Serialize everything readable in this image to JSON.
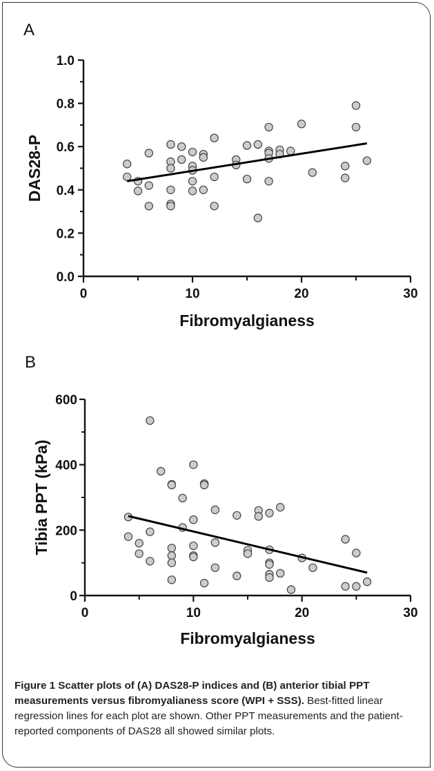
{
  "chart_data": [
    {
      "type": "scatter",
      "panel_label": "A",
      "xlabel": "Fibromyalgianess",
      "ylabel": "DAS28-P",
      "xlim": [
        0,
        30
      ],
      "ylim": [
        0.0,
        1.0
      ],
      "x_ticks": [
        "0",
        "10",
        "20",
        "30"
      ],
      "y_ticks": [
        "0.0",
        "0.2",
        "0.4",
        "0.6",
        "0.8",
        "1.0"
      ],
      "grid": false,
      "marker_color": "#cccccc",
      "marker_edge": "#444444",
      "line_color": "#000000",
      "points": [
        [
          4,
          0.52
        ],
        [
          4,
          0.46
        ],
        [
          5,
          0.44
        ],
        [
          5,
          0.395
        ],
        [
          6,
          0.57
        ],
        [
          6,
          0.42
        ],
        [
          6,
          0.325
        ],
        [
          8,
          0.61
        ],
        [
          8,
          0.53
        ],
        [
          8,
          0.5
        ],
        [
          8,
          0.4
        ],
        [
          8,
          0.335
        ],
        [
          8,
          0.325
        ],
        [
          9,
          0.6
        ],
        [
          9,
          0.54
        ],
        [
          10,
          0.575
        ],
        [
          10,
          0.51
        ],
        [
          10,
          0.49
        ],
        [
          10,
          0.44
        ],
        [
          10,
          0.395
        ],
        [
          11,
          0.565
        ],
        [
          11,
          0.55
        ],
        [
          11,
          0.4
        ],
        [
          12,
          0.64
        ],
        [
          12,
          0.46
        ],
        [
          12,
          0.325
        ],
        [
          14,
          0.54
        ],
        [
          14,
          0.515
        ],
        [
          15,
          0.605
        ],
        [
          15,
          0.45
        ],
        [
          16,
          0.61
        ],
        [
          16,
          0.27
        ],
        [
          17,
          0.69
        ],
        [
          17,
          0.58
        ],
        [
          17,
          0.57
        ],
        [
          17,
          0.545
        ],
        [
          17,
          0.44
        ],
        [
          18,
          0.585
        ],
        [
          18,
          0.565
        ],
        [
          19,
          0.58
        ],
        [
          20,
          0.705
        ],
        [
          21,
          0.48
        ],
        [
          24,
          0.51
        ],
        [
          24,
          0.455
        ],
        [
          25,
          0.79
        ],
        [
          25,
          0.69
        ],
        [
          26,
          0.535
        ]
      ],
      "regression": {
        "x": [
          4,
          26
        ],
        "y": [
          0.44,
          0.615
        ]
      }
    },
    {
      "type": "scatter",
      "panel_label": "B",
      "xlabel": "Fibromyalgianess",
      "ylabel": "Tibia PPT (kPa)",
      "xlim": [
        0,
        30
      ],
      "ylim": [
        0,
        600
      ],
      "x_ticks": [
        "0",
        "10",
        "20",
        "30"
      ],
      "y_ticks": [
        "0",
        "200",
        "400",
        "600"
      ],
      "grid": false,
      "marker_color": "#cccccc",
      "marker_edge": "#444444",
      "line_color": "#000000",
      "points": [
        [
          4,
          240
        ],
        [
          4,
          180
        ],
        [
          5,
          160
        ],
        [
          5,
          128
        ],
        [
          6,
          535
        ],
        [
          6,
          195
        ],
        [
          6,
          105
        ],
        [
          7,
          380
        ],
        [
          8,
          340
        ],
        [
          8,
          338
        ],
        [
          8,
          145
        ],
        [
          8,
          122
        ],
        [
          8,
          100
        ],
        [
          8,
          48
        ],
        [
          9,
          298
        ],
        [
          9,
          208
        ],
        [
          10,
          400
        ],
        [
          10,
          232
        ],
        [
          10,
          152
        ],
        [
          10,
          122
        ],
        [
          10,
          118
        ],
        [
          11,
          342
        ],
        [
          11,
          338
        ],
        [
          11,
          38
        ],
        [
          12,
          262
        ],
        [
          12,
          162
        ],
        [
          12,
          85
        ],
        [
          14,
          245
        ],
        [
          14,
          60
        ],
        [
          15,
          138
        ],
        [
          15,
          128
        ],
        [
          16,
          260
        ],
        [
          16,
          242
        ],
        [
          17,
          252
        ],
        [
          17,
          140
        ],
        [
          17,
          100
        ],
        [
          17,
          95
        ],
        [
          17,
          65
        ],
        [
          17,
          55
        ],
        [
          18,
          270
        ],
        [
          18,
          68
        ],
        [
          19,
          18
        ],
        [
          20,
          115
        ],
        [
          21,
          85
        ],
        [
          24,
          172
        ],
        [
          24,
          28
        ],
        [
          25,
          130
        ],
        [
          25,
          28
        ],
        [
          26,
          42
        ]
      ],
      "regression": {
        "x": [
          4,
          26
        ],
        "y": [
          243,
          70
        ]
      }
    }
  ],
  "caption": {
    "bold": "Figure 1 Scatter plots of (A) DAS28-P indices and (B) anterior tibial PPT measurements versus fibromyalianess score (WPI + SSS).",
    "normal": " Best-fitted linear regression lines for each plot are shown. Other PPT measurements and the patient-reported components of DAS28 all showed similar plots."
  }
}
